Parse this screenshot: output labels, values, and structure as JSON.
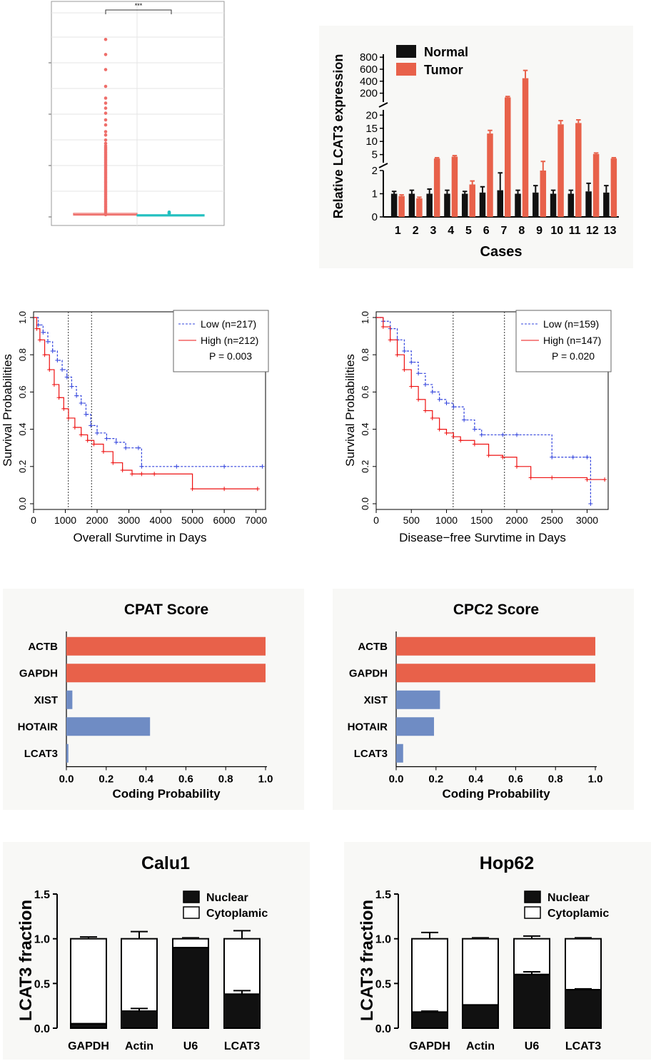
{
  "chart_data": [
    {
      "type": "box",
      "significance": "***",
      "groups": [
        {
          "color": "#ee6e6a",
          "median": 0.5,
          "q1": 0.2,
          "q3": 1.3,
          "outliers": [
            0.5,
            1.5,
            2.5,
            3.5,
            4.5,
            5.5,
            6.5,
            7.5,
            8.5,
            9.5,
            10.5,
            11.5,
            12.5,
            13.5,
            14.5,
            15.5,
            16.5,
            17.5,
            18.5,
            19.5,
            20.5,
            21.5,
            22.5,
            23.5,
            24.5,
            25.5,
            26.5,
            27.5,
            28.5,
            29.5,
            30.5,
            31.5,
            32.5,
            33.5,
            34.5,
            35.5,
            36.5,
            37.5,
            38.5,
            39.5,
            40.5,
            41.5,
            43,
            45,
            48,
            50,
            54,
            57,
            61,
            64,
            67,
            70,
            77,
            87,
            96,
            105
          ]
        },
        {
          "color": "#22c0c0",
          "median": 0.2,
          "q1": 0.05,
          "q3": 0.5,
          "outliers": [
            1.2,
            1.6,
            2.0
          ]
        }
      ],
      "ylim": [
        0,
        110
      ]
    },
    {
      "type": "bar",
      "ylabel": "Relative LCAT3 expression",
      "xlabel": "Cases",
      "categories": [
        "1",
        "2",
        "3",
        "4",
        "5",
        "6",
        "7",
        "8",
        "9",
        "10",
        "11",
        "12",
        "13"
      ],
      "series": [
        {
          "name": "Normal",
          "color": "#111111",
          "values": [
            1.0,
            1.0,
            1.0,
            1.0,
            1.0,
            1.05,
            1.15,
            1.0,
            1.05,
            1.0,
            1.0,
            1.1,
            1.05
          ],
          "errors": [
            0.1,
            0.15,
            0.2,
            0.15,
            0.1,
            0.25,
            0.75,
            0.15,
            0.3,
            0.15,
            0.15,
            0.35,
            0.3
          ]
        },
        {
          "name": "Tumor",
          "color": "#e8614a",
          "values": [
            0.9,
            0.8,
            3.5,
            4.2,
            1.4,
            13,
            130,
            450,
            2.0,
            16.5,
            17,
            5.2,
            3.5
          ],
          "errors": [
            0.05,
            0.05,
            0.3,
            0.4,
            0.15,
            1.2,
            15,
            130,
            0.4,
            1.4,
            1.2,
            0.4,
            0.3
          ]
        }
      ],
      "y_segments": [
        {
          "range": [
            0,
            2
          ],
          "ticks": [
            0,
            1,
            2
          ]
        },
        {
          "range": [
            3,
            22
          ],
          "ticks": [
            5,
            10,
            15,
            20
          ]
        },
        {
          "range": [
            100,
            850
          ],
          "ticks": [
            200,
            400,
            600,
            800
          ]
        }
      ]
    },
    {
      "type": "line",
      "subtype": "kaplan-meier",
      "xlabel": "Overall Survtime in Days",
      "ylabel": "Survival Probabilities",
      "xlim": [
        0,
        7300
      ],
      "ylim": [
        0,
        1.0
      ],
      "xticks": [
        0,
        1000,
        2000,
        3000,
        4000,
        5000,
        6000,
        7000
      ],
      "yticks": [
        0.0,
        0.2,
        0.4,
        0.6,
        0.8,
        1.0
      ],
      "vlines": [
        1095,
        1825
      ],
      "legend": {
        "low_label": "Low (n=217)",
        "high_label": "High (n=212)",
        "p_label": "P = 0.003"
      },
      "series": [
        {
          "name": "Low (n=217)",
          "color": "#3344dd",
          "dashed": true,
          "x": [
            0,
            150,
            300,
            450,
            600,
            750,
            900,
            1050,
            1200,
            1350,
            1500,
            1650,
            1800,
            2000,
            2300,
            2600,
            2900,
            3300,
            3400,
            4500,
            6000,
            7200
          ],
          "y": [
            1.0,
            0.96,
            0.92,
            0.87,
            0.82,
            0.77,
            0.72,
            0.68,
            0.63,
            0.58,
            0.54,
            0.48,
            0.42,
            0.38,
            0.35,
            0.33,
            0.3,
            0.3,
            0.2,
            0.2,
            0.2,
            0.2
          ]
        },
        {
          "name": "High (n=212)",
          "color": "#ee1111",
          "dashed": false,
          "x": [
            0,
            100,
            200,
            350,
            500,
            650,
            800,
            950,
            1100,
            1300,
            1500,
            1700,
            1900,
            2200,
            2500,
            2800,
            3100,
            3400,
            3800,
            5000,
            6000,
            7050
          ],
          "y": [
            1.0,
            0.94,
            0.88,
            0.8,
            0.72,
            0.64,
            0.57,
            0.51,
            0.46,
            0.41,
            0.37,
            0.34,
            0.32,
            0.28,
            0.22,
            0.18,
            0.16,
            0.16,
            0.16,
            0.08,
            0.08,
            0.08
          ]
        }
      ]
    },
    {
      "type": "line",
      "subtype": "kaplan-meier",
      "xlabel": "Disease−free Survtime in Days",
      "ylabel": "Survival Probabilities",
      "xlim": [
        0,
        3300
      ],
      "ylim": [
        0,
        1.0
      ],
      "xticks": [
        0,
        500,
        1000,
        1500,
        2000,
        2500,
        3000
      ],
      "yticks": [
        0.0,
        0.2,
        0.4,
        0.6,
        0.8,
        1.0
      ],
      "vlines": [
        1095,
        1825
      ],
      "legend": {
        "low_label": "Low (n=159)",
        "high_label": "High (n=147)",
        "p_label": "P = 0.020"
      },
      "series": [
        {
          "name": "Low (n=159)",
          "color": "#3344dd",
          "dashed": true,
          "x": [
            0,
            100,
            200,
            300,
            400,
            500,
            600,
            700,
            800,
            900,
            1000,
            1100,
            1250,
            1400,
            1500,
            1800,
            2000,
            2500,
            2800,
            3000,
            3050
          ],
          "y": [
            1.0,
            0.98,
            0.94,
            0.88,
            0.82,
            0.76,
            0.7,
            0.64,
            0.6,
            0.56,
            0.54,
            0.52,
            0.45,
            0.4,
            0.37,
            0.37,
            0.37,
            0.25,
            0.25,
            0.25,
            0.0
          ]
        },
        {
          "name": "High (n=147)",
          "color": "#ee1111",
          "dashed": false,
          "x": [
            0,
            100,
            200,
            300,
            400,
            500,
            600,
            700,
            800,
            900,
            1000,
            1100,
            1200,
            1400,
            1600,
            1800,
            2000,
            2200,
            2500,
            3000,
            3250
          ],
          "y": [
            1.0,
            0.95,
            0.88,
            0.8,
            0.72,
            0.63,
            0.56,
            0.5,
            0.46,
            0.4,
            0.38,
            0.36,
            0.34,
            0.32,
            0.26,
            0.25,
            0.2,
            0.14,
            0.14,
            0.13,
            0.13
          ]
        }
      ]
    },
    {
      "type": "bar",
      "orientation": "horizontal",
      "title": "CPAT Score",
      "xlabel": "Coding Probability",
      "xlim": [
        0,
        1.0
      ],
      "xticks": [
        0.0,
        0.2,
        0.4,
        0.6,
        0.8,
        1.0
      ],
      "categories": [
        "ACTB",
        "GAPDH",
        "XIST",
        "HOTAIR",
        "LCAT3"
      ],
      "values": [
        1.0,
        1.0,
        0.03,
        0.42,
        0.01
      ],
      "colors": [
        "#e8614a",
        "#e8614a",
        "#6f8cc4",
        "#6f8cc4",
        "#6f8cc4"
      ]
    },
    {
      "type": "bar",
      "orientation": "horizontal",
      "title": "CPC2 Score",
      "xlabel": "Coding Probability",
      "xlim": [
        0,
        1.0
      ],
      "xticks": [
        0.0,
        0.2,
        0.4,
        0.6,
        0.8,
        1.0
      ],
      "categories": [
        "ACTB",
        "GAPDH",
        "XIST",
        "HOTAIR",
        "LCAT3"
      ],
      "values": [
        1.0,
        1.0,
        0.22,
        0.19,
        0.035
      ],
      "colors": [
        "#e8614a",
        "#e8614a",
        "#6f8cc4",
        "#6f8cc4",
        "#6f8cc4"
      ]
    },
    {
      "type": "bar",
      "stacked": true,
      "title": "Calu1",
      "ylabel": "LCAT3 fraction",
      "ylim": [
        0,
        1.5
      ],
      "yticks": [
        0.0,
        0.5,
        1.0,
        1.5
      ],
      "categories": [
        "GAPDH",
        "Actin",
        "U6",
        "LCAT3"
      ],
      "series": [
        {
          "name": "Nuclear",
          "color": "#111111",
          "values": [
            0.05,
            0.19,
            0.9,
            0.38
          ],
          "errors": [
            0.0,
            0.03,
            0.0,
            0.04
          ]
        },
        {
          "name": "Cytoplamic",
          "color": "#ffffff",
          "values": [
            0.95,
            0.81,
            0.1,
            0.62
          ],
          "errors": [
            0.02,
            0.08,
            0.01,
            0.09
          ]
        }
      ]
    },
    {
      "type": "bar",
      "stacked": true,
      "title": "Hop62",
      "ylabel": "LCAT3 fraction",
      "ylim": [
        0,
        1.5
      ],
      "yticks": [
        0.0,
        0.5,
        1.0,
        1.5
      ],
      "categories": [
        "GAPDH",
        "Actin",
        "U6",
        "LCAT3"
      ],
      "series": [
        {
          "name": "Nuclear",
          "color": "#111111",
          "values": [
            0.18,
            0.26,
            0.6,
            0.43
          ],
          "errors": [
            0.01,
            0.0,
            0.03,
            0.01
          ]
        },
        {
          "name": "Cytoplamic",
          "color": "#ffffff",
          "values": [
            0.82,
            0.74,
            0.4,
            0.57
          ],
          "errors": [
            0.07,
            0.01,
            0.03,
            0.01
          ]
        }
      ]
    }
  ]
}
